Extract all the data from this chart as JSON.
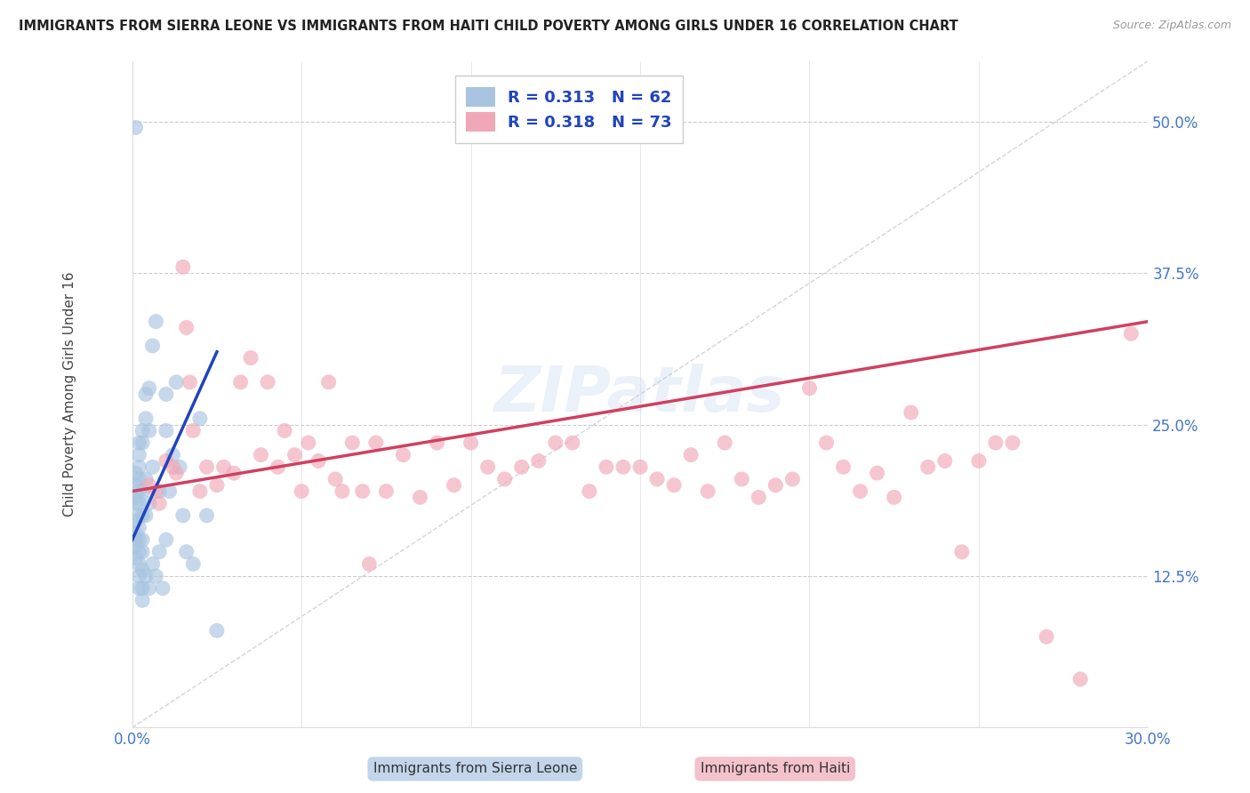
{
  "title": "IMMIGRANTS FROM SIERRA LEONE VS IMMIGRANTS FROM HAITI CHILD POVERTY AMONG GIRLS UNDER 16 CORRELATION CHART",
  "source": "Source: ZipAtlas.com",
  "ylabel": "Child Poverty Among Girls Under 16",
  "xlim": [
    0.0,
    0.3
  ],
  "ylim": [
    0.0,
    0.55
  ],
  "xticks": [
    0.0,
    0.05,
    0.1,
    0.15,
    0.2,
    0.25,
    0.3
  ],
  "xticklabels": [
    "0.0%",
    "",
    "",
    "",
    "",
    "",
    "30.0%"
  ],
  "yticks": [
    0.0,
    0.125,
    0.25,
    0.375,
    0.5
  ],
  "yticklabels": [
    "",
    "12.5%",
    "25.0%",
    "37.5%",
    "50.0%"
  ],
  "watermark": "ZIPatlas",
  "color_sierra": "#a8c4e0",
  "color_haiti": "#f0a8b8",
  "color_line_sierra": "#2244bb",
  "color_line_haiti": "#d04060",
  "color_diag": "#c8c8d8",
  "sierra_x": [
    0.001,
    0.001,
    0.001,
    0.001,
    0.001,
    0.001,
    0.001,
    0.001,
    0.001,
    0.001,
    0.002,
    0.002,
    0.002,
    0.002,
    0.002,
    0.002,
    0.002,
    0.002,
    0.002,
    0.002,
    0.002,
    0.002,
    0.002,
    0.003,
    0.003,
    0.003,
    0.003,
    0.003,
    0.003,
    0.003,
    0.003,
    0.003,
    0.004,
    0.004,
    0.004,
    0.004,
    0.004,
    0.005,
    0.005,
    0.005,
    0.005,
    0.006,
    0.006,
    0.006,
    0.007,
    0.007,
    0.008,
    0.008,
    0.009,
    0.01,
    0.01,
    0.01,
    0.011,
    0.012,
    0.013,
    0.014,
    0.015,
    0.016,
    0.018,
    0.02,
    0.022,
    0.025
  ],
  "sierra_y": [
    0.495,
    0.21,
    0.2,
    0.19,
    0.185,
    0.17,
    0.16,
    0.155,
    0.15,
    0.14,
    0.235,
    0.225,
    0.215,
    0.205,
    0.195,
    0.185,
    0.175,
    0.165,
    0.155,
    0.145,
    0.135,
    0.125,
    0.115,
    0.245,
    0.235,
    0.195,
    0.175,
    0.155,
    0.145,
    0.13,
    0.115,
    0.105,
    0.275,
    0.255,
    0.205,
    0.175,
    0.125,
    0.28,
    0.245,
    0.185,
    0.115,
    0.315,
    0.215,
    0.135,
    0.335,
    0.125,
    0.195,
    0.145,
    0.115,
    0.275,
    0.245,
    0.155,
    0.195,
    0.225,
    0.285,
    0.215,
    0.175,
    0.145,
    0.135,
    0.255,
    0.175,
    0.08
  ],
  "haiti_x": [
    0.005,
    0.007,
    0.008,
    0.01,
    0.012,
    0.013,
    0.015,
    0.016,
    0.017,
    0.018,
    0.02,
    0.022,
    0.025,
    0.027,
    0.03,
    0.032,
    0.035,
    0.038,
    0.04,
    0.043,
    0.045,
    0.048,
    0.05,
    0.052,
    0.055,
    0.058,
    0.06,
    0.062,
    0.065,
    0.068,
    0.07,
    0.072,
    0.075,
    0.08,
    0.085,
    0.09,
    0.095,
    0.1,
    0.105,
    0.11,
    0.115,
    0.12,
    0.125,
    0.13,
    0.135,
    0.14,
    0.145,
    0.15,
    0.155,
    0.16,
    0.165,
    0.17,
    0.175,
    0.18,
    0.185,
    0.19,
    0.195,
    0.2,
    0.205,
    0.21,
    0.215,
    0.22,
    0.225,
    0.23,
    0.235,
    0.24,
    0.245,
    0.25,
    0.255,
    0.26,
    0.27,
    0.28,
    0.295
  ],
  "haiti_y": [
    0.2,
    0.195,
    0.185,
    0.22,
    0.215,
    0.21,
    0.38,
    0.33,
    0.285,
    0.245,
    0.195,
    0.215,
    0.2,
    0.215,
    0.21,
    0.285,
    0.305,
    0.225,
    0.285,
    0.215,
    0.245,
    0.225,
    0.195,
    0.235,
    0.22,
    0.285,
    0.205,
    0.195,
    0.235,
    0.195,
    0.135,
    0.235,
    0.195,
    0.225,
    0.19,
    0.235,
    0.2,
    0.235,
    0.215,
    0.205,
    0.215,
    0.22,
    0.235,
    0.235,
    0.195,
    0.215,
    0.215,
    0.215,
    0.205,
    0.2,
    0.225,
    0.195,
    0.235,
    0.205,
    0.19,
    0.2,
    0.205,
    0.28,
    0.235,
    0.215,
    0.195,
    0.21,
    0.19,
    0.26,
    0.215,
    0.22,
    0.145,
    0.22,
    0.235,
    0.235,
    0.075,
    0.04,
    0.325
  ],
  "sierra_line_x": [
    0.0,
    0.025
  ],
  "sierra_line_y": [
    0.155,
    0.31
  ],
  "haiti_line_x": [
    0.0,
    0.3
  ],
  "haiti_line_y": [
    0.195,
    0.335
  ]
}
